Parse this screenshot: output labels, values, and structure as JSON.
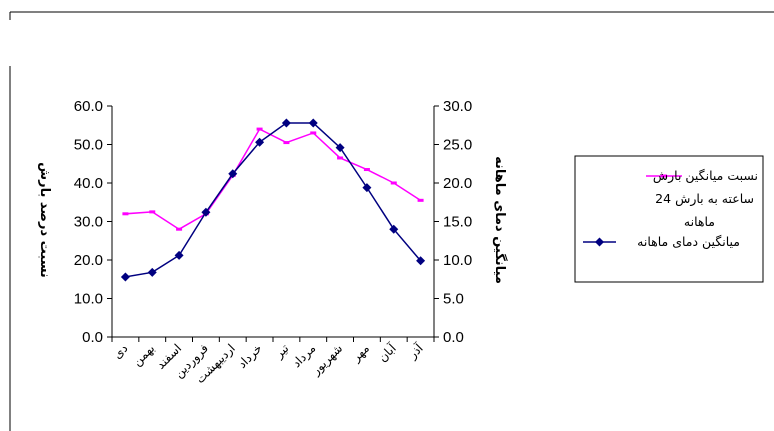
{
  "chart_data": {
    "type": "line",
    "categories": [
      "دی",
      "بهمن",
      "اسفند",
      "فروردین",
      "اردیبهشت",
      "خرداد",
      "تیر",
      "مرداد",
      "شهریور",
      "مهر",
      "آبان",
      "آذر"
    ],
    "series": [
      {
        "name_lines": [
          "نسبت  میانگین بارش",
          "24 ساعته به بارش",
          "ماهانه"
        ],
        "axis": "left",
        "color": "#ff00ff",
        "marker": "dash",
        "values": [
          32.0,
          32.5,
          28.0,
          32.0,
          42.0,
          54.0,
          50.5,
          53.0,
          46.5,
          43.5,
          40.0,
          35.5
        ]
      },
      {
        "name": "میانگین دمای ماهانه",
        "axis": "right",
        "color": "#000080",
        "marker": "diamond",
        "values": [
          7.8,
          8.4,
          10.6,
          16.2,
          21.2,
          25.3,
          27.8,
          27.8,
          24.6,
          19.4,
          14.0,
          9.9
        ]
      }
    ],
    "y_left": {
      "label": "نسبت درصد بارش",
      "ylim": [
        0,
        60
      ],
      "ticks": [
        "0.0",
        "10.0",
        "20.0",
        "30.0",
        "40.0",
        "50.0",
        "60.0"
      ]
    },
    "y_right": {
      "label": "میانگین دمای ماهانه",
      "ylim": [
        0,
        30
      ],
      "ticks": [
        "0.0",
        "5.0",
        "10.0",
        "15.0",
        "20.0",
        "25.0",
        "30.0"
      ]
    },
    "legend_position": "right",
    "grid": false
  }
}
